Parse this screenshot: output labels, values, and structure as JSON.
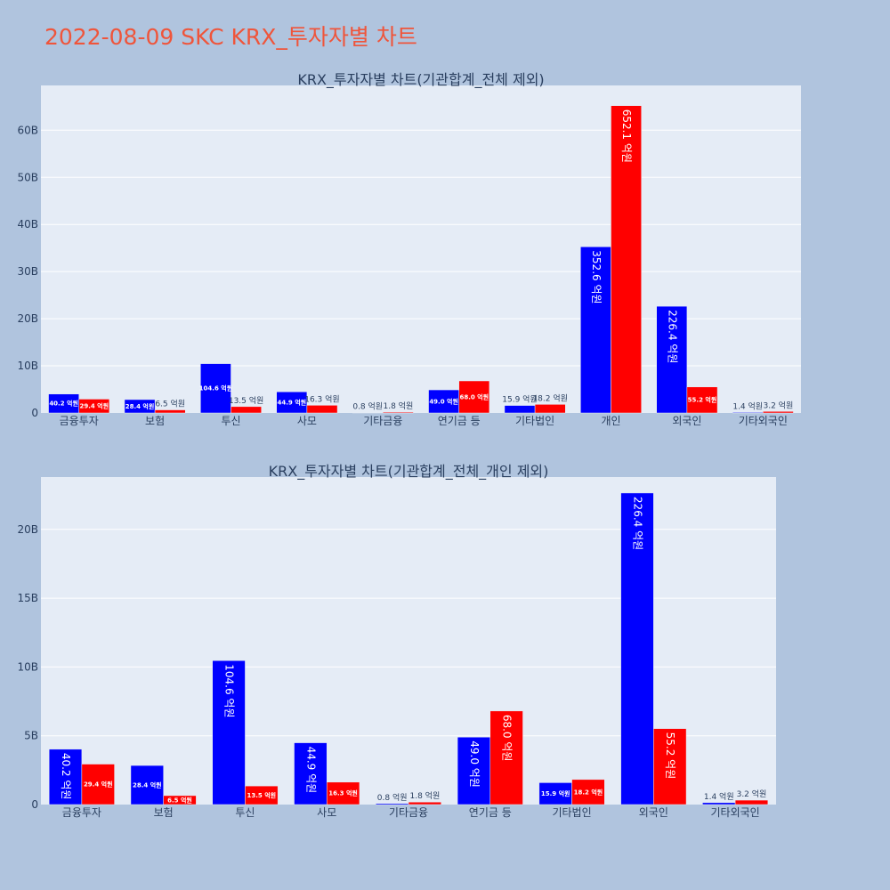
{
  "page": {
    "title": "2022-08-09 SKC KRX_투자자별 차트"
  },
  "colors": {
    "buy": "#0000ff",
    "sell": "#ff0000",
    "plot_bg": "#e5ecf6",
    "page_bg": "#b0c4de",
    "title": "#ef553b"
  },
  "chart_data": [
    {
      "type": "bar",
      "title": "KRX_투자자별 차트(기관합계_전체 제외)",
      "categories": [
        "금융투자",
        "보험",
        "투신",
        "사모",
        "기타금융",
        "연기금 등",
        "기타법인",
        "개인",
        "외국인",
        "기타외국인"
      ],
      "series": [
        {
          "color": "#0000ff",
          "values": [
            4.02,
            2.84,
            10.46,
            4.49,
            0.08,
            4.9,
            1.59,
            35.26,
            22.64,
            0.14
          ],
          "labels": [
            "40.2 억원",
            "28.4 억원",
            "104.6 억원",
            "44.9 억원",
            "0.8 억원",
            "49.0 억원",
            "15.9 억원",
            "352.6 억원",
            "226.4 억원",
            "1.4 억원"
          ]
        },
        {
          "color": "#ff0000",
          "values": [
            2.94,
            0.65,
            1.35,
            1.63,
            0.18,
            6.8,
            1.82,
            65.21,
            5.52,
            0.32
          ],
          "labels": [
            "29.4 억원",
            "6.5 억원",
            "13.5 억원",
            "16.3 억원",
            "1.8 억원",
            "68.0 억원",
            "18.2 억원",
            "652.1 억원",
            "55.2 억원",
            "3.2 억원"
          ]
        }
      ],
      "ylim": [
        0,
        69.5
      ],
      "yticks": [
        0,
        10,
        20,
        30,
        40,
        50,
        60
      ],
      "ytick_labels": [
        "0",
        "10B",
        "20B",
        "30B",
        "40B",
        "50B",
        "60B"
      ],
      "grid": true,
      "legend": "none"
    },
    {
      "type": "bar",
      "title": "KRX_투자자별 차트(기관합계_전체_개인 제외)",
      "categories": [
        "금융투자",
        "보험",
        "투신",
        "사모",
        "기타금융",
        "연기금 등",
        "기타법인",
        "외국인",
        "기타외국인"
      ],
      "series": [
        {
          "color": "#0000ff",
          "values": [
            4.02,
            2.84,
            10.46,
            4.49,
            0.08,
            4.9,
            1.59,
            22.64,
            0.14
          ],
          "labels": [
            "40.2 억원",
            "28.4 억원",
            "104.6 억원",
            "44.9 억원",
            "0.8 억원",
            "49.0 억원",
            "15.9 억원",
            "226.4 억원",
            "1.4 억원"
          ]
        },
        {
          "color": "#ff0000",
          "values": [
            2.94,
            0.65,
            1.35,
            1.63,
            0.18,
            6.8,
            1.82,
            5.52,
            0.32
          ],
          "labels": [
            "29.4 억원",
            "6.5 억원",
            "13.5 억원",
            "16.3 억원",
            "1.8 억원",
            "68.0 억원",
            "18.2 억원",
            "55.2 억원",
            "3.2 억원"
          ]
        }
      ],
      "ylim": [
        0,
        23.8
      ],
      "yticks": [
        0,
        5,
        10,
        15,
        20
      ],
      "ytick_labels": [
        "0",
        "5B",
        "10B",
        "15B",
        "20B"
      ],
      "grid": true,
      "legend": "none"
    }
  ]
}
